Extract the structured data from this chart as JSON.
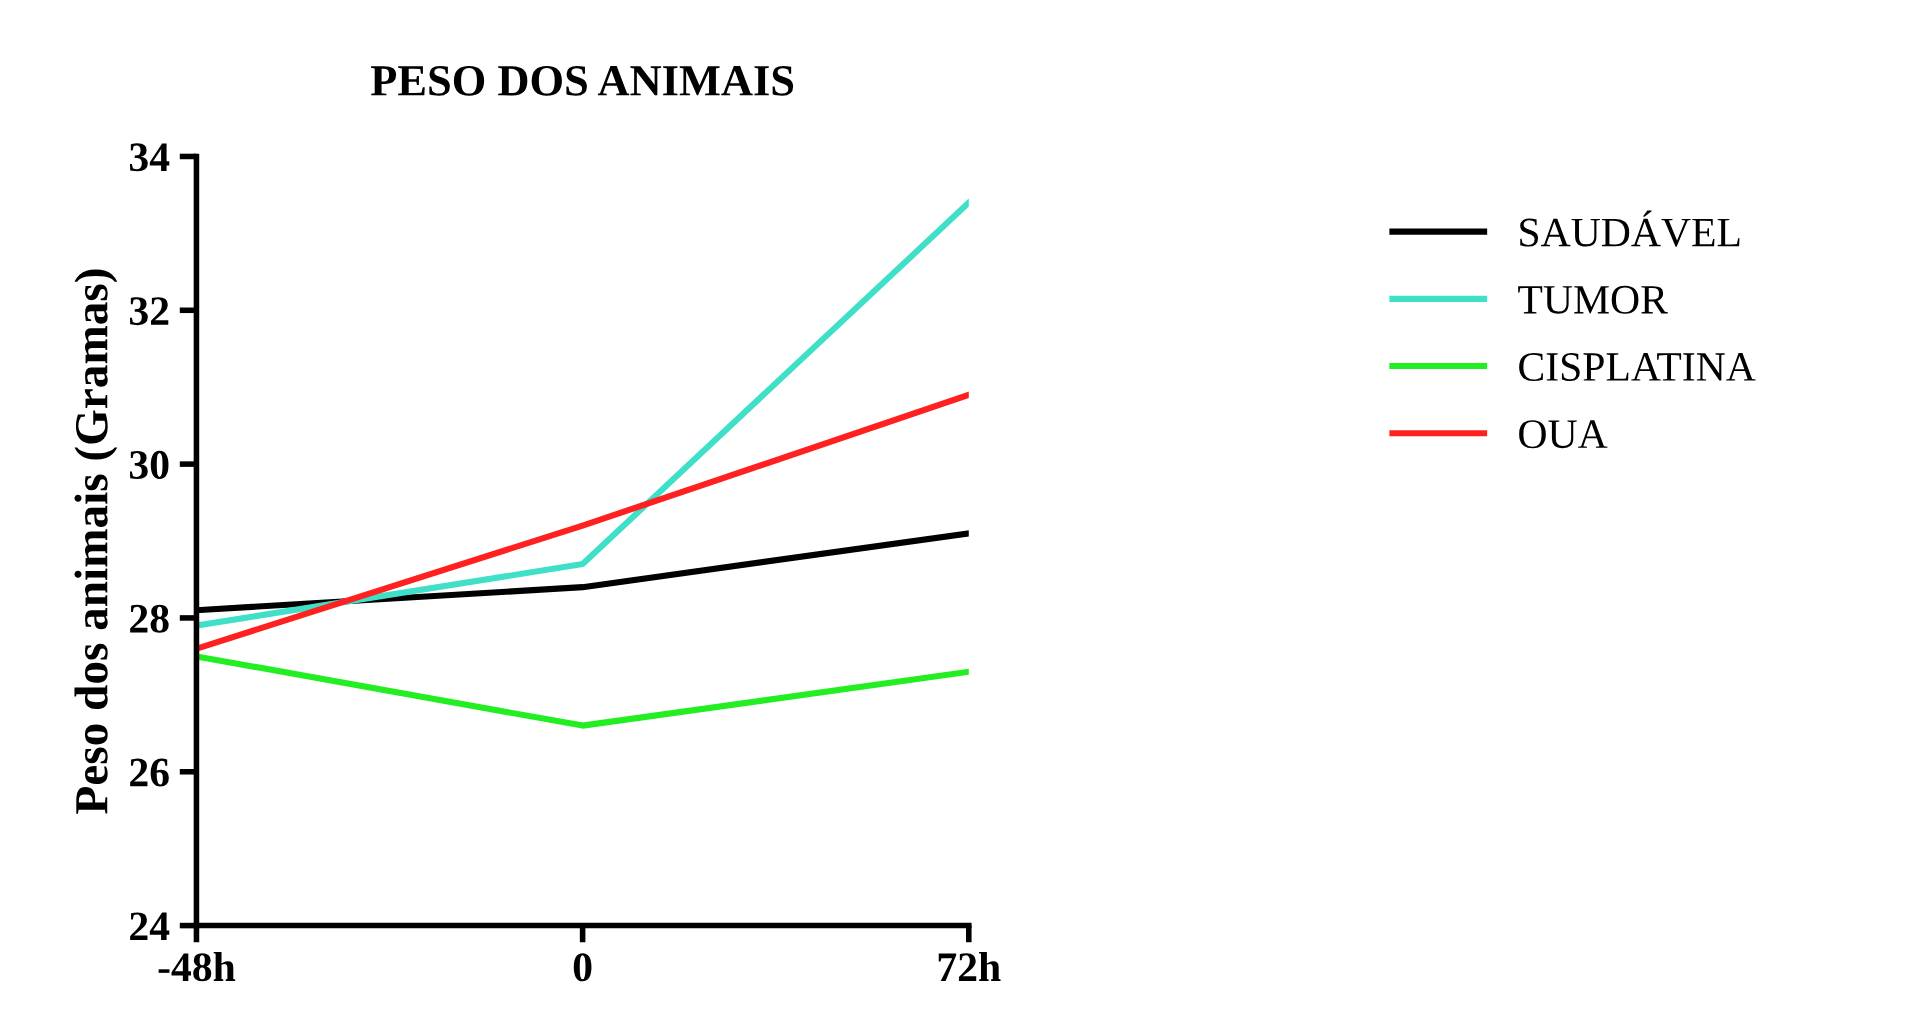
{
  "chart_data": {
    "type": "line",
    "title": "PESO DOS ANIMAIS",
    "ylabel": "Peso dos animais (Gramas)",
    "categories": [
      "-48h",
      "0",
      "72h"
    ],
    "series": [
      {
        "name": "SAUDÁVEL",
        "color": "#000000",
        "values": [
          28.1,
          28.4,
          29.1
        ]
      },
      {
        "name": "TUMOR",
        "color": "#40e0c8",
        "values": [
          27.9,
          28.7,
          33.4
        ]
      },
      {
        "name": "CISPLATINA",
        "color": "#22ee22",
        "values": [
          27.5,
          26.6,
          27.3
        ]
      },
      {
        "name": "OUA",
        "color": "#ff2020",
        "values": [
          27.6,
          29.2,
          30.9
        ]
      }
    ],
    "ylim": [
      24,
      34
    ],
    "yticks": [
      24,
      26,
      28,
      30,
      32,
      34
    ],
    "grid": false,
    "legend": "right",
    "marker": "none",
    "line_style": "solid"
  }
}
